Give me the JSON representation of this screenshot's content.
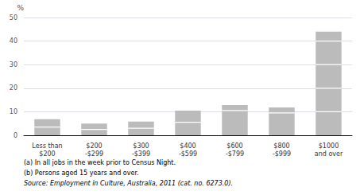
{
  "chart_data": {
    "type": "bar",
    "ylabel": "%",
    "categories": [
      "Less than\n$200",
      "$200\n-$299",
      "$300\n-$399",
      "$400\n-$599",
      "$600\n-$799",
      "$800\n-$999",
      "$1000\nand over"
    ],
    "values": [
      6.8,
      5.0,
      5.8,
      10.5,
      12.8,
      11.8,
      44.0
    ],
    "color": "#bbbbbb",
    "white_lines": [
      [
        3.5
      ],
      [
        2.5
      ],
      [
        3.0
      ],
      [
        5.5
      ],
      [
        10.5
      ],
      [
        9.5
      ],
      [
        10.0,
        20.0,
        30.0,
        40.0
      ]
    ],
    "ylim": [
      0,
      50
    ],
    "yticks": [
      0,
      10,
      20,
      30,
      40,
      50
    ],
    "grid": true,
    "footnotes": [
      "(a) In all jobs in the week prior to Census Night.",
      "(b) Persons aged 15 years and over."
    ],
    "source": "Source: Employment in Culture, Australia, 2011 (cat. no. 6273.0)."
  }
}
